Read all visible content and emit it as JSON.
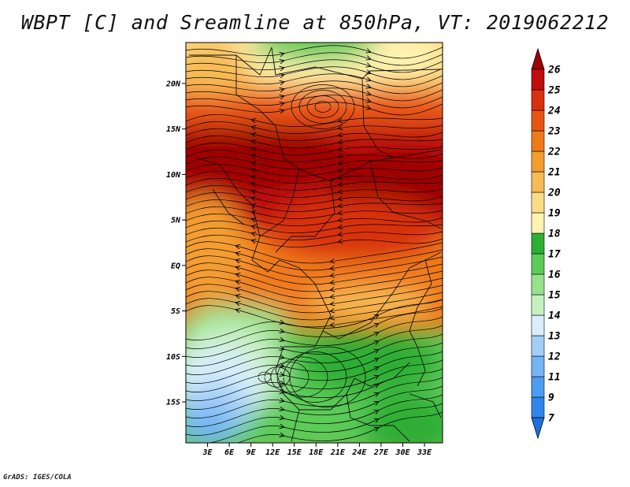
{
  "title": "WBPT [C] and Sreamline at 850hPa, VT: 2019062212",
  "credit": "GrADS: IGES/COLA",
  "map": {
    "lon_range": [
      0,
      35.5
    ],
    "lat_range": [
      -19.5,
      24.5
    ],
    "lat_ticks": [
      {
        "value": 20,
        "label": "20N"
      },
      {
        "value": 15,
        "label": "15N"
      },
      {
        "value": 10,
        "label": "10N"
      },
      {
        "value": 5,
        "label": "5N"
      },
      {
        "value": 0,
        "label": "EQ"
      },
      {
        "value": -5,
        "label": "5S"
      },
      {
        "value": -10,
        "label": "10S"
      },
      {
        "value": -15,
        "label": "15S"
      }
    ],
    "lon_ticks": [
      {
        "value": 3,
        "label": "3E"
      },
      {
        "value": 6,
        "label": "6E"
      },
      {
        "value": 9,
        "label": "9E"
      },
      {
        "value": 12,
        "label": "12E"
      },
      {
        "value": 15,
        "label": "15E"
      },
      {
        "value": 18,
        "label": "18E"
      },
      {
        "value": 21,
        "label": "21E"
      },
      {
        "value": 24,
        "label": "24E"
      },
      {
        "value": 27,
        "label": "27E"
      },
      {
        "value": 30,
        "label": "30E"
      },
      {
        "value": 33,
        "label": "33E"
      }
    ]
  },
  "colorbar": {
    "labels": [
      "7",
      "9",
      "11",
      "12",
      "13",
      "14",
      "15",
      "16",
      "17",
      "18",
      "19",
      "20",
      "21",
      "22",
      "23",
      "24",
      "25",
      "26"
    ],
    "colors": [
      "#1e6fe0",
      "#2f86ea",
      "#4c9cf0",
      "#75b5f5",
      "#a2cff8",
      "#d8eefb",
      "#c7f0c0",
      "#96e28e",
      "#5ccb58",
      "#2fae34",
      "#fff3b0",
      "#fbdc86",
      "#f7bb55",
      "#f39d30",
      "#ef7a1a",
      "#e85512",
      "#d8300f",
      "#c00d0d",
      "#9e0000"
    ]
  }
}
